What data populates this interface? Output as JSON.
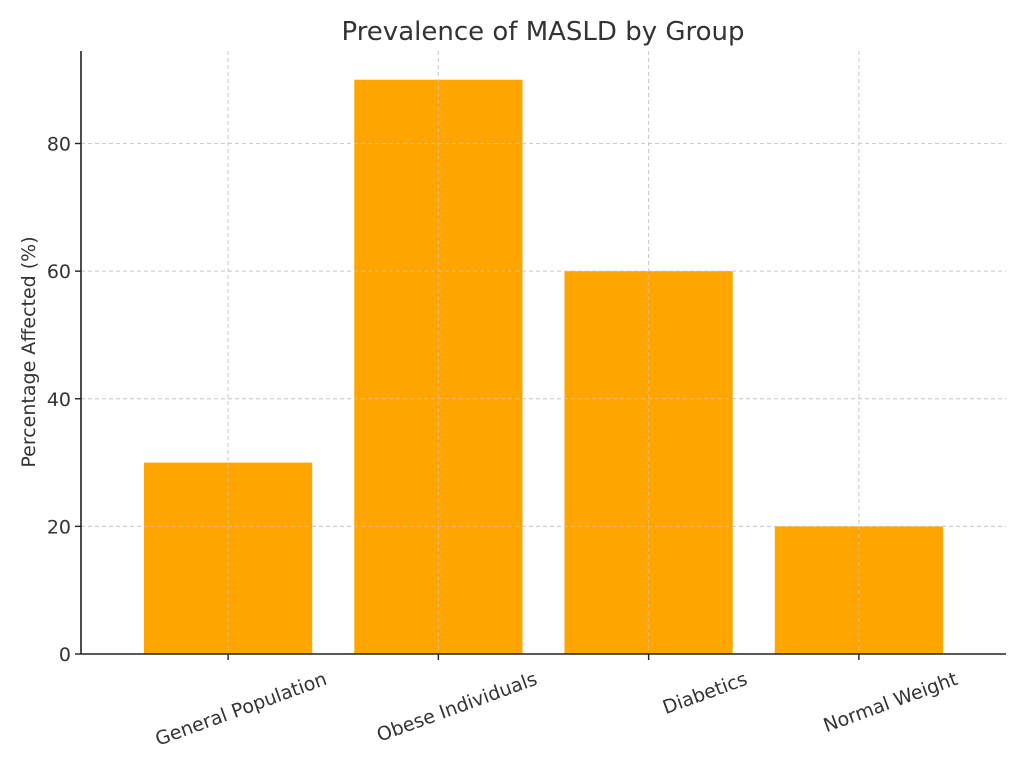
{
  "chart_data": {
    "type": "bar",
    "title": "Prevalence of MASLD by Group",
    "xlabel": "",
    "ylabel": "Percentage Affected (%)",
    "categories": [
      "General Population",
      "Obese Individuals",
      "Diabetics",
      "Normal Weight"
    ],
    "values": [
      30,
      90,
      60,
      20
    ],
    "yticks": [
      0,
      20,
      40,
      60,
      80
    ],
    "ylim": [
      0,
      94.5
    ],
    "grid": true,
    "bar_color": "#ffa500"
  }
}
